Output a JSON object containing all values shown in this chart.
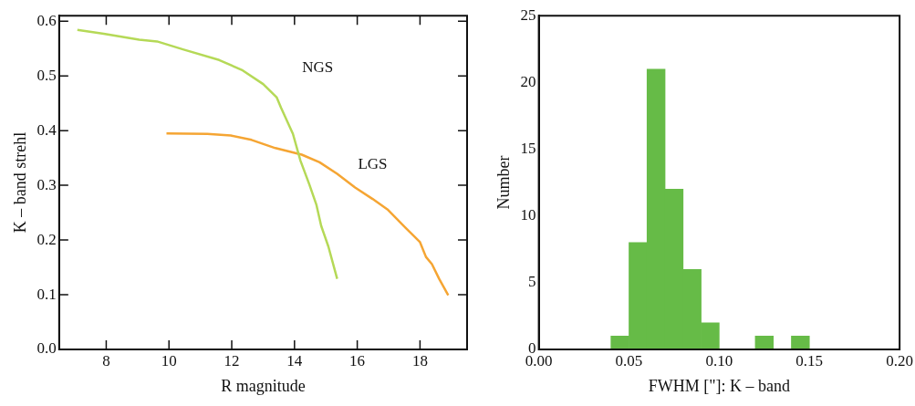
{
  "chart_data": [
    {
      "type": "line",
      "xlabel": "R magnitude",
      "ylabel": "K – band strehl",
      "xlim": [
        6.5,
        19.5
      ],
      "xticks": [
        8,
        10,
        12,
        14,
        16,
        18
      ],
      "ylim": [
        0,
        0.61
      ],
      "yticks": [
        {
          "value": 0,
          "label": "0.0"
        },
        0.1,
        0.2,
        0.3,
        0.4,
        0.5,
        0.6
      ],
      "grid": false,
      "series": [
        {
          "name": "NGS",
          "color": "#b5d957",
          "x": [
            7.08,
            7.92,
            9.05,
            9.62,
            10.47,
            11.6,
            12.35,
            13.0,
            13.43,
            13.57,
            13.95,
            14.19,
            14.47,
            14.7,
            14.85,
            15.08,
            15.36
          ],
          "values": [
            0.584,
            0.577,
            0.566,
            0.563,
            0.548,
            0.529,
            0.51,
            0.485,
            0.461,
            0.442,
            0.394,
            0.345,
            0.302,
            0.264,
            0.226,
            0.188,
            0.129
          ]
        },
        {
          "name": "LGS",
          "color": "#f5a533",
          "x": [
            9.92,
            11.22,
            11.97,
            12.63,
            13.39,
            14.23,
            14.8,
            15.36,
            15.93,
            16.49,
            16.96,
            17.53,
            18.0,
            18.19,
            18.38,
            18.61,
            18.9
          ],
          "values": [
            0.395,
            0.394,
            0.391,
            0.383,
            0.368,
            0.356,
            0.342,
            0.321,
            0.296,
            0.275,
            0.256,
            0.223,
            0.196,
            0.169,
            0.156,
            0.129,
            0.099
          ]
        }
      ]
    },
    {
      "type": "histogram",
      "xlabel": "FWHM [\"]: K – band",
      "ylabel": "Number",
      "color": "#66bb47",
      "bins": [
        0.04,
        0.05,
        0.06,
        0.07,
        0.08,
        0.09,
        0.1,
        0.11,
        0.12,
        0.13,
        0.14,
        0.15
      ],
      "values": [
        1,
        8,
        21,
        12,
        6,
        2,
        0,
        0,
        1,
        0,
        1
      ],
      "xlim": [
        0,
        0.2
      ],
      "xticks": [
        {
          "value": 0,
          "label": "0.00"
        },
        0.05,
        {
          "value": 0.1,
          "label": "0.10"
        },
        0.15,
        {
          "value": 0.2,
          "label": "0.20"
        }
      ],
      "ylim": [
        0,
        25
      ],
      "yticks": [
        0,
        5,
        10,
        15,
        20,
        25
      ],
      "grid": false
    }
  ]
}
